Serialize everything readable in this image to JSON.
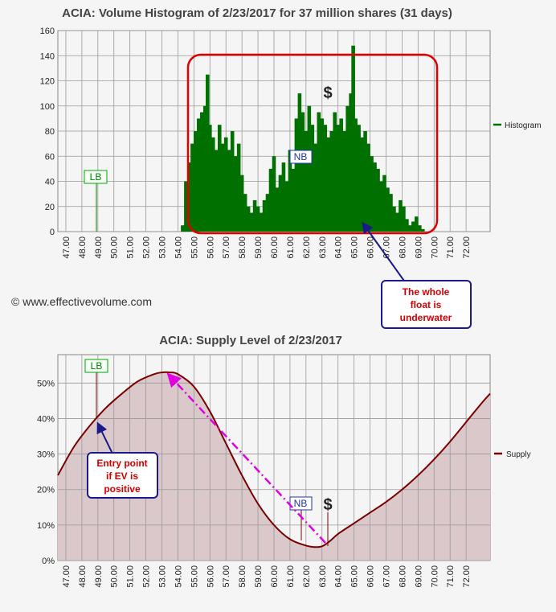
{
  "chart_data": [
    {
      "type": "area",
      "title": "ACIA: Volume Histogram of 2/23/2017 for 37 million shares (31 days)",
      "xlim": [
        46.5,
        73.5
      ],
      "ylim": [
        0,
        160
      ],
      "y_ticks": [
        "0",
        "20",
        "40",
        "60",
        "80",
        "100",
        "120",
        "140",
        "160"
      ],
      "x_ticks": [
        "47.00",
        "48.00",
        "49.00",
        "50.00",
        "51.00",
        "52.00",
        "53.00",
        "54.00",
        "55.00",
        "56.00",
        "57.00",
        "58.00",
        "59.00",
        "60.00",
        "61.00",
        "62.00",
        "63.00",
        "64.00",
        "65.00",
        "66.00",
        "67.00",
        "68.00",
        "69.00",
        "70.00",
        "71.00",
        "72.00"
      ],
      "series": [
        {
          "name": "Histogram",
          "color": "#007000",
          "x": [
            54.3,
            54.5,
            54.7,
            54.9,
            55.1,
            55.3,
            55.5,
            55.7,
            55.85,
            56.0,
            56.2,
            56.4,
            56.6,
            56.8,
            57.0,
            57.2,
            57.4,
            57.6,
            57.8,
            58.0,
            58.2,
            58.4,
            58.6,
            58.8,
            59.0,
            59.2,
            59.4,
            59.6,
            59.8,
            60.0,
            60.2,
            60.4,
            60.6,
            60.8,
            61.0,
            61.2,
            61.4,
            61.6,
            61.8,
            62.0,
            62.2,
            62.4,
            62.6,
            62.8,
            63.0,
            63.2,
            63.4,
            63.6,
            63.8,
            64.0,
            64.2,
            64.4,
            64.6,
            64.8,
            64.95,
            65.1,
            65.3,
            65.5,
            65.7,
            65.9,
            66.1,
            66.3,
            66.5,
            66.7,
            66.9,
            67.1,
            67.3,
            67.5,
            67.7,
            67.9,
            68.1,
            68.3,
            68.5,
            68.7,
            68.9,
            69.1,
            69.3
          ],
          "values": [
            5,
            40,
            55,
            70,
            80,
            90,
            95,
            100,
            125,
            85,
            75,
            65,
            85,
            70,
            75,
            65,
            80,
            60,
            70,
            45,
            30,
            20,
            15,
            25,
            20,
            15,
            25,
            30,
            50,
            60,
            35,
            45,
            55,
            40,
            65,
            50,
            90,
            110,
            95,
            80,
            100,
            85,
            70,
            95,
            90,
            85,
            75,
            80,
            95,
            85,
            90,
            80,
            100,
            110,
            148,
            90,
            85,
            75,
            80,
            70,
            60,
            55,
            50,
            40,
            45,
            35,
            30,
            20,
            15,
            25,
            20,
            10,
            5,
            8,
            12,
            5,
            2
          ]
        }
      ],
      "annotations": {
        "lb": "LB",
        "nb": "NB",
        "dollar": "$"
      },
      "callout": [
        "The whole",
        "float is",
        "underwater"
      ]
    },
    {
      "type": "area",
      "title": "ACIA: Supply Level of 2/23/2017",
      "xlim": [
        46.5,
        73.5
      ],
      "ylim": [
        0,
        58
      ],
      "y_ticks": [
        "0%",
        "10%",
        "20%",
        "30%",
        "40%",
        "50%"
      ],
      "x_ticks": [
        "47.00",
        "48.00",
        "49.00",
        "50.00",
        "51.00",
        "52.00",
        "53.00",
        "54.00",
        "55.00",
        "56.00",
        "57.00",
        "58.00",
        "59.00",
        "60.00",
        "61.00",
        "62.00",
        "63.00",
        "64.00",
        "65.00",
        "66.00",
        "67.00",
        "68.00",
        "69.00",
        "70.00",
        "71.00",
        "72.00"
      ],
      "series": [
        {
          "name": "Supply",
          "color": "#7a0000",
          "x": [
            46.5,
            47.5,
            48.5,
            49.5,
            50.5,
            51.5,
            52.5,
            53.0,
            53.5,
            54.0,
            55.0,
            56.0,
            57.0,
            58.0,
            59.0,
            60.0,
            61.0,
            62.0,
            62.5,
            63.0,
            63.5,
            64.0,
            65.0,
            66.0,
            67.0,
            68.0,
            69.0,
            70.0,
            71.0,
            72.0,
            73.0,
            73.5
          ],
          "values": [
            24,
            32,
            38,
            43,
            47,
            50.5,
            52.5,
            53,
            53,
            52.5,
            49,
            42,
            33,
            24,
            16,
            10,
            6,
            4.2,
            3.8,
            4,
            5.5,
            7.5,
            10.5,
            13.5,
            16.5,
            20,
            24,
            28.5,
            33.5,
            39,
            44.5,
            47
          ]
        }
      ],
      "annotations": {
        "lb": "LB",
        "nb": "NB",
        "dollar": "$"
      },
      "callout": [
        "Entry point",
        "if EV is",
        "positive"
      ]
    }
  ],
  "footer": {
    "copyright": "© www.effectivevolume.com"
  }
}
